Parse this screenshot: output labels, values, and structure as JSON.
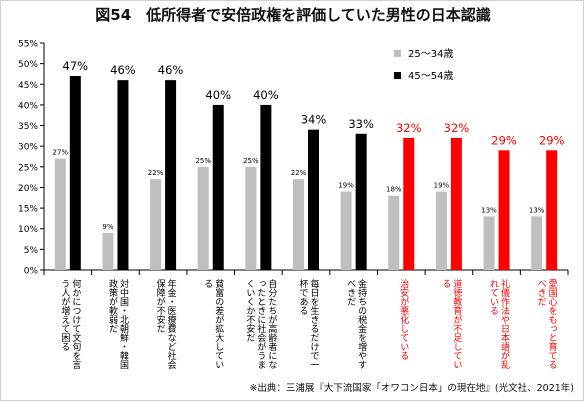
{
  "chart_data": {
    "type": "bar",
    "title": "図54　低所得者で安倍政権を評価していた男性の日本認識",
    "categories": [
      "何かにつけて文句を言う人が増えて困る",
      "対中国・北朝鮮・韓国政策が軟弱だ",
      "年金・医療費など社会保障が不安だ",
      "貧富の差が拡大している",
      "自分たちが高齢者になったときに社会がうまくいくか不安だ",
      "毎日を生きるだけで一杯である",
      "金持ちの税金を増やすべきだ",
      "治安が悪化している",
      "道徳教育が不足している",
      "礼儀作法や日本語が乱れている",
      "愛国心をもっと育てるべきだ"
    ],
    "series": [
      {
        "name": "25〜34歳",
        "color": "#bfbfbf",
        "values": [
          27,
          9,
          22,
          25,
          25,
          22,
          19,
          18,
          19,
          13,
          13
        ]
      },
      {
        "name": "45〜54歳",
        "color": "#000000",
        "values": [
          47,
          46,
          46,
          40,
          40,
          34,
          33,
          32,
          32,
          29,
          29
        ]
      }
    ],
    "data_labels": {
      "series_1": [
        "27%",
        "9%",
        "22%",
        "25%",
        "25%",
        "22%",
        "19%",
        "18%",
        "19%",
        "13%",
        "13%"
      ],
      "series_2": [
        "47%",
        "46%",
        "46%",
        "40%",
        "40%",
        "34%",
        "33%",
        "32%",
        "32%",
        "29%",
        "29%"
      ]
    },
    "highlight": {
      "categories": [
        7,
        8,
        9,
        10
      ],
      "color": "#ff0000"
    },
    "y_ticks": [
      "0%",
      "5%",
      "10%",
      "15%",
      "20%",
      "25%",
      "30%",
      "35%",
      "40%",
      "45%",
      "50%",
      "55%"
    ],
    "ylim": [
      0,
      55
    ],
    "grid": false,
    "legend_position": "top-right",
    "xlabel": "",
    "ylabel": ""
  },
  "source": "※出典：三浦展『大下流国家「オワコン日本」の現在地』(光文社、2021年)"
}
